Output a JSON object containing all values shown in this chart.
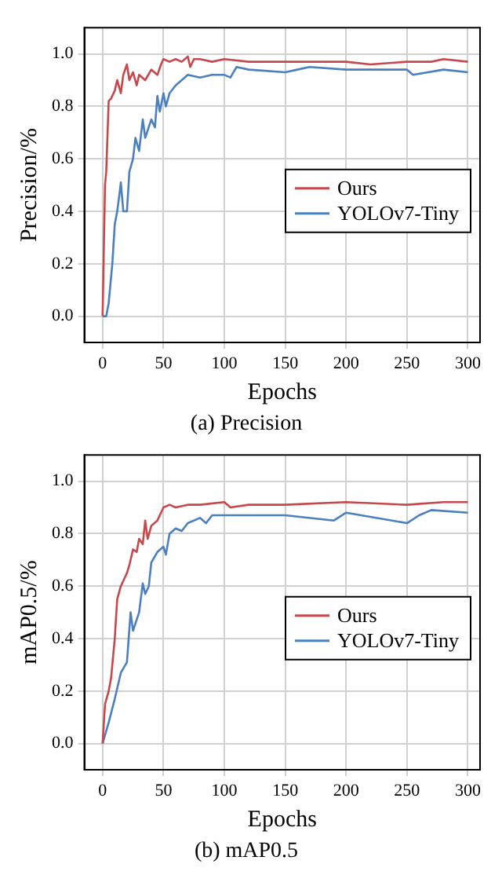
{
  "chart_data": [
    {
      "type": "line",
      "title": "(a) Precision",
      "xlabel": "Epochs",
      "ylabel": "Precision/%",
      "xlim": [
        -15,
        310
      ],
      "xticks": [
        0,
        50,
        100,
        150,
        200,
        250,
        300
      ],
      "ylim": [
        -0.1,
        1.1
      ],
      "yticks": [
        {
          "value": 0,
          "label": "0.0"
        },
        {
          "value": 0.2,
          "label": "0.2"
        },
        {
          "value": 0.4,
          "label": "0.4"
        },
        {
          "value": 0.6,
          "label": "0.6"
        },
        {
          "value": 0.8,
          "label": "0.8"
        },
        {
          "value": 1,
          "label": "1.0"
        }
      ],
      "grid": true,
      "legend": "right",
      "marker": "none",
      "line_style": "solid",
      "series": [
        {
          "name": "Ours",
          "color": "#c8474a",
          "x": [
            0,
            2,
            3,
            5,
            7,
            10,
            12,
            15,
            17,
            20,
            22,
            25,
            28,
            30,
            35,
            40,
            45,
            48,
            50,
            55,
            60,
            65,
            70,
            72,
            75,
            80,
            90,
            100,
            120,
            150,
            200,
            220,
            250,
            270,
            280,
            300
          ],
          "values": [
            0,
            0.5,
            0.55,
            0.82,
            0.83,
            0.86,
            0.9,
            0.85,
            0.92,
            0.96,
            0.9,
            0.93,
            0.88,
            0.92,
            0.9,
            0.94,
            0.92,
            0.96,
            0.98,
            0.97,
            0.98,
            0.97,
            0.99,
            0.95,
            0.98,
            0.98,
            0.97,
            0.98,
            0.97,
            0.97,
            0.97,
            0.96,
            0.97,
            0.97,
            0.98,
            0.97
          ]
        },
        {
          "name": "YOLOv7-Tiny",
          "color": "#4a7fc1",
          "x": [
            0,
            3,
            5,
            8,
            10,
            12,
            14,
            15,
            17,
            20,
            22,
            25,
            27,
            30,
            33,
            35,
            40,
            43,
            45,
            47,
            50,
            52,
            55,
            60,
            65,
            70,
            80,
            90,
            100,
            105,
            110,
            120,
            150,
            160,
            170,
            200,
            250,
            255,
            280,
            300
          ],
          "values": [
            0,
            0,
            0.05,
            0.2,
            0.35,
            0.4,
            0.47,
            0.51,
            0.4,
            0.4,
            0.55,
            0.6,
            0.68,
            0.63,
            0.75,
            0.68,
            0.75,
            0.72,
            0.84,
            0.78,
            0.85,
            0.8,
            0.85,
            0.88,
            0.9,
            0.92,
            0.91,
            0.92,
            0.92,
            0.91,
            0.95,
            0.94,
            0.93,
            0.94,
            0.95,
            0.94,
            0.94,
            0.92,
            0.94,
            0.93
          ]
        }
      ]
    },
    {
      "type": "line",
      "title": "(b) mAP0.5",
      "xlabel": "Epochs",
      "ylabel": "mAP0.5/%",
      "xlim": [
        -15,
        310
      ],
      "xticks": [
        0,
        50,
        100,
        150,
        200,
        250,
        300
      ],
      "ylim": [
        -0.1,
        1.1
      ],
      "yticks": [
        {
          "value": 0,
          "label": "0.0"
        },
        {
          "value": 0.2,
          "label": "0.2"
        },
        {
          "value": 0.4,
          "label": "0.4"
        },
        {
          "value": 0.6,
          "label": "0.6"
        },
        {
          "value": 0.8,
          "label": "0.8"
        },
        {
          "value": 1,
          "label": "1.0"
        }
      ],
      "grid": true,
      "legend": "right",
      "marker": "none",
      "line_style": "solid",
      "series": [
        {
          "name": "Ours",
          "color": "#c8474a",
          "x": [
            0,
            2,
            5,
            7,
            10,
            12,
            15,
            18,
            20,
            22,
            25,
            28,
            30,
            33,
            35,
            37,
            40,
            45,
            50,
            55,
            60,
            70,
            80,
            100,
            105,
            120,
            150,
            200,
            250,
            280,
            300
          ],
          "values": [
            0,
            0.15,
            0.2,
            0.25,
            0.4,
            0.55,
            0.6,
            0.63,
            0.65,
            0.68,
            0.74,
            0.73,
            0.78,
            0.76,
            0.85,
            0.78,
            0.83,
            0.85,
            0.9,
            0.91,
            0.9,
            0.91,
            0.91,
            0.92,
            0.9,
            0.91,
            0.91,
            0.92,
            0.91,
            0.92,
            0.92
          ]
        },
        {
          "name": "YOLOv7-Tiny",
          "color": "#4a7fc1",
          "x": [
            0,
            5,
            10,
            15,
            20,
            23,
            25,
            30,
            33,
            35,
            38,
            40,
            45,
            50,
            52,
            55,
            60,
            65,
            70,
            80,
            85,
            90,
            100,
            120,
            150,
            190,
            200,
            250,
            260,
            270,
            300
          ],
          "values": [
            0,
            0.08,
            0.17,
            0.27,
            0.31,
            0.5,
            0.43,
            0.5,
            0.61,
            0.57,
            0.6,
            0.69,
            0.73,
            0.75,
            0.72,
            0.8,
            0.82,
            0.81,
            0.84,
            0.86,
            0.84,
            0.87,
            0.87,
            0.87,
            0.87,
            0.85,
            0.88,
            0.84,
            0.87,
            0.89,
            0.88
          ]
        }
      ]
    }
  ]
}
